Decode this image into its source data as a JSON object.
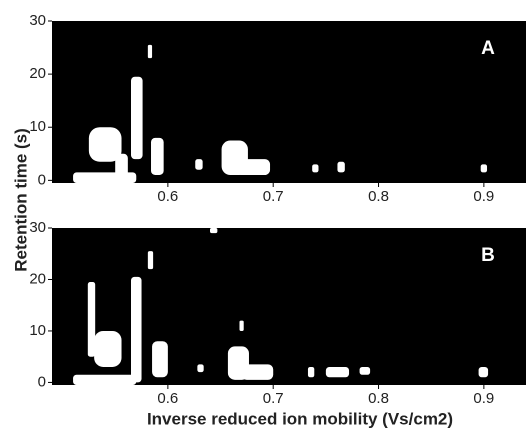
{
  "chart_data": [
    {
      "type": "region",
      "annotation": "A",
      "ylabel": "Retention time (s)",
      "xlim": [
        0.49,
        0.94
      ],
      "ylim": [
        -0.5,
        30
      ],
      "xticks": [
        0.6,
        0.7,
        0.8,
        0.9
      ],
      "yticks": [
        0,
        10,
        20,
        30
      ],
      "color": "#ffffff",
      "regions": [
        {
          "x": [
            0.525,
            0.556
          ],
          "y": [
            3.5,
            10
          ]
        },
        {
          "x": [
            0.55,
            0.562
          ],
          "y": [
            0.5,
            5
          ]
        },
        {
          "x": [
            0.565,
            0.576
          ],
          "y": [
            4,
            19.5
          ]
        },
        {
          "x": [
            0.51,
            0.57
          ],
          "y": [
            -0.5,
            1.5
          ]
        },
        {
          "x": [
            0.584,
            0.596
          ],
          "y": [
            1,
            8
          ]
        },
        {
          "x": [
            0.581,
            0.585
          ],
          "y": [
            23,
            25.5
          ]
        },
        {
          "x": [
            0.626,
            0.633
          ],
          "y": [
            2,
            4
          ]
        },
        {
          "x": [
            0.651,
            0.676
          ],
          "y": [
            1,
            7.5
          ]
        },
        {
          "x": [
            0.665,
            0.697
          ],
          "y": [
            1,
            4
          ]
        },
        {
          "x": [
            0.737,
            0.743
          ],
          "y": [
            1.5,
            3
          ]
        },
        {
          "x": [
            0.761,
            0.768
          ],
          "y": [
            1.5,
            3.5
          ]
        },
        {
          "x": [
            0.897,
            0.903
          ],
          "y": [
            1.5,
            3
          ]
        }
      ]
    },
    {
      "type": "region",
      "annotation": "B",
      "xlabel": "Inverse reduced ion mobility (Vs/cm2)",
      "xlim": [
        0.49,
        0.94
      ],
      "ylim": [
        -0.5,
        30
      ],
      "xticks": [
        0.6,
        0.7,
        0.8,
        0.9
      ],
      "yticks": [
        0,
        10,
        20,
        30
      ],
      "color": "#ffffff",
      "regions": [
        {
          "x": [
            0.53,
            0.556
          ],
          "y": [
            3,
            10
          ]
        },
        {
          "x": [
            0.524,
            0.531
          ],
          "y": [
            5,
            19.5
          ]
        },
        {
          "x": [
            0.565,
            0.575
          ],
          "y": [
            0,
            20.5
          ]
        },
        {
          "x": [
            0.51,
            0.57
          ],
          "y": [
            -0.5,
            1.5
          ]
        },
        {
          "x": [
            0.581,
            0.586
          ],
          "y": [
            22,
            25.5
          ]
        },
        {
          "x": [
            0.585,
            0.6
          ],
          "y": [
            1,
            8
          ]
        },
        {
          "x": [
            0.628,
            0.634
          ],
          "y": [
            2,
            3.5
          ]
        },
        {
          "x": [
            0.64,
            0.647
          ],
          "y": [
            29,
            30
          ]
        },
        {
          "x": [
            0.657,
            0.677
          ],
          "y": [
            0.5,
            7
          ]
        },
        {
          "x": [
            0.67,
            0.7
          ],
          "y": [
            0.5,
            3.5
          ]
        },
        {
          "x": [
            0.668,
            0.672
          ],
          "y": [
            10,
            12
          ]
        },
        {
          "x": [
            0.733,
            0.739
          ],
          "y": [
            1,
            3
          ]
        },
        {
          "x": [
            0.75,
            0.772
          ],
          "y": [
            1,
            3
          ]
        },
        {
          "x": [
            0.782,
            0.792
          ],
          "y": [
            1.5,
            3
          ]
        },
        {
          "x": [
            0.895,
            0.904
          ],
          "y": [
            1,
            3
          ]
        }
      ]
    }
  ]
}
